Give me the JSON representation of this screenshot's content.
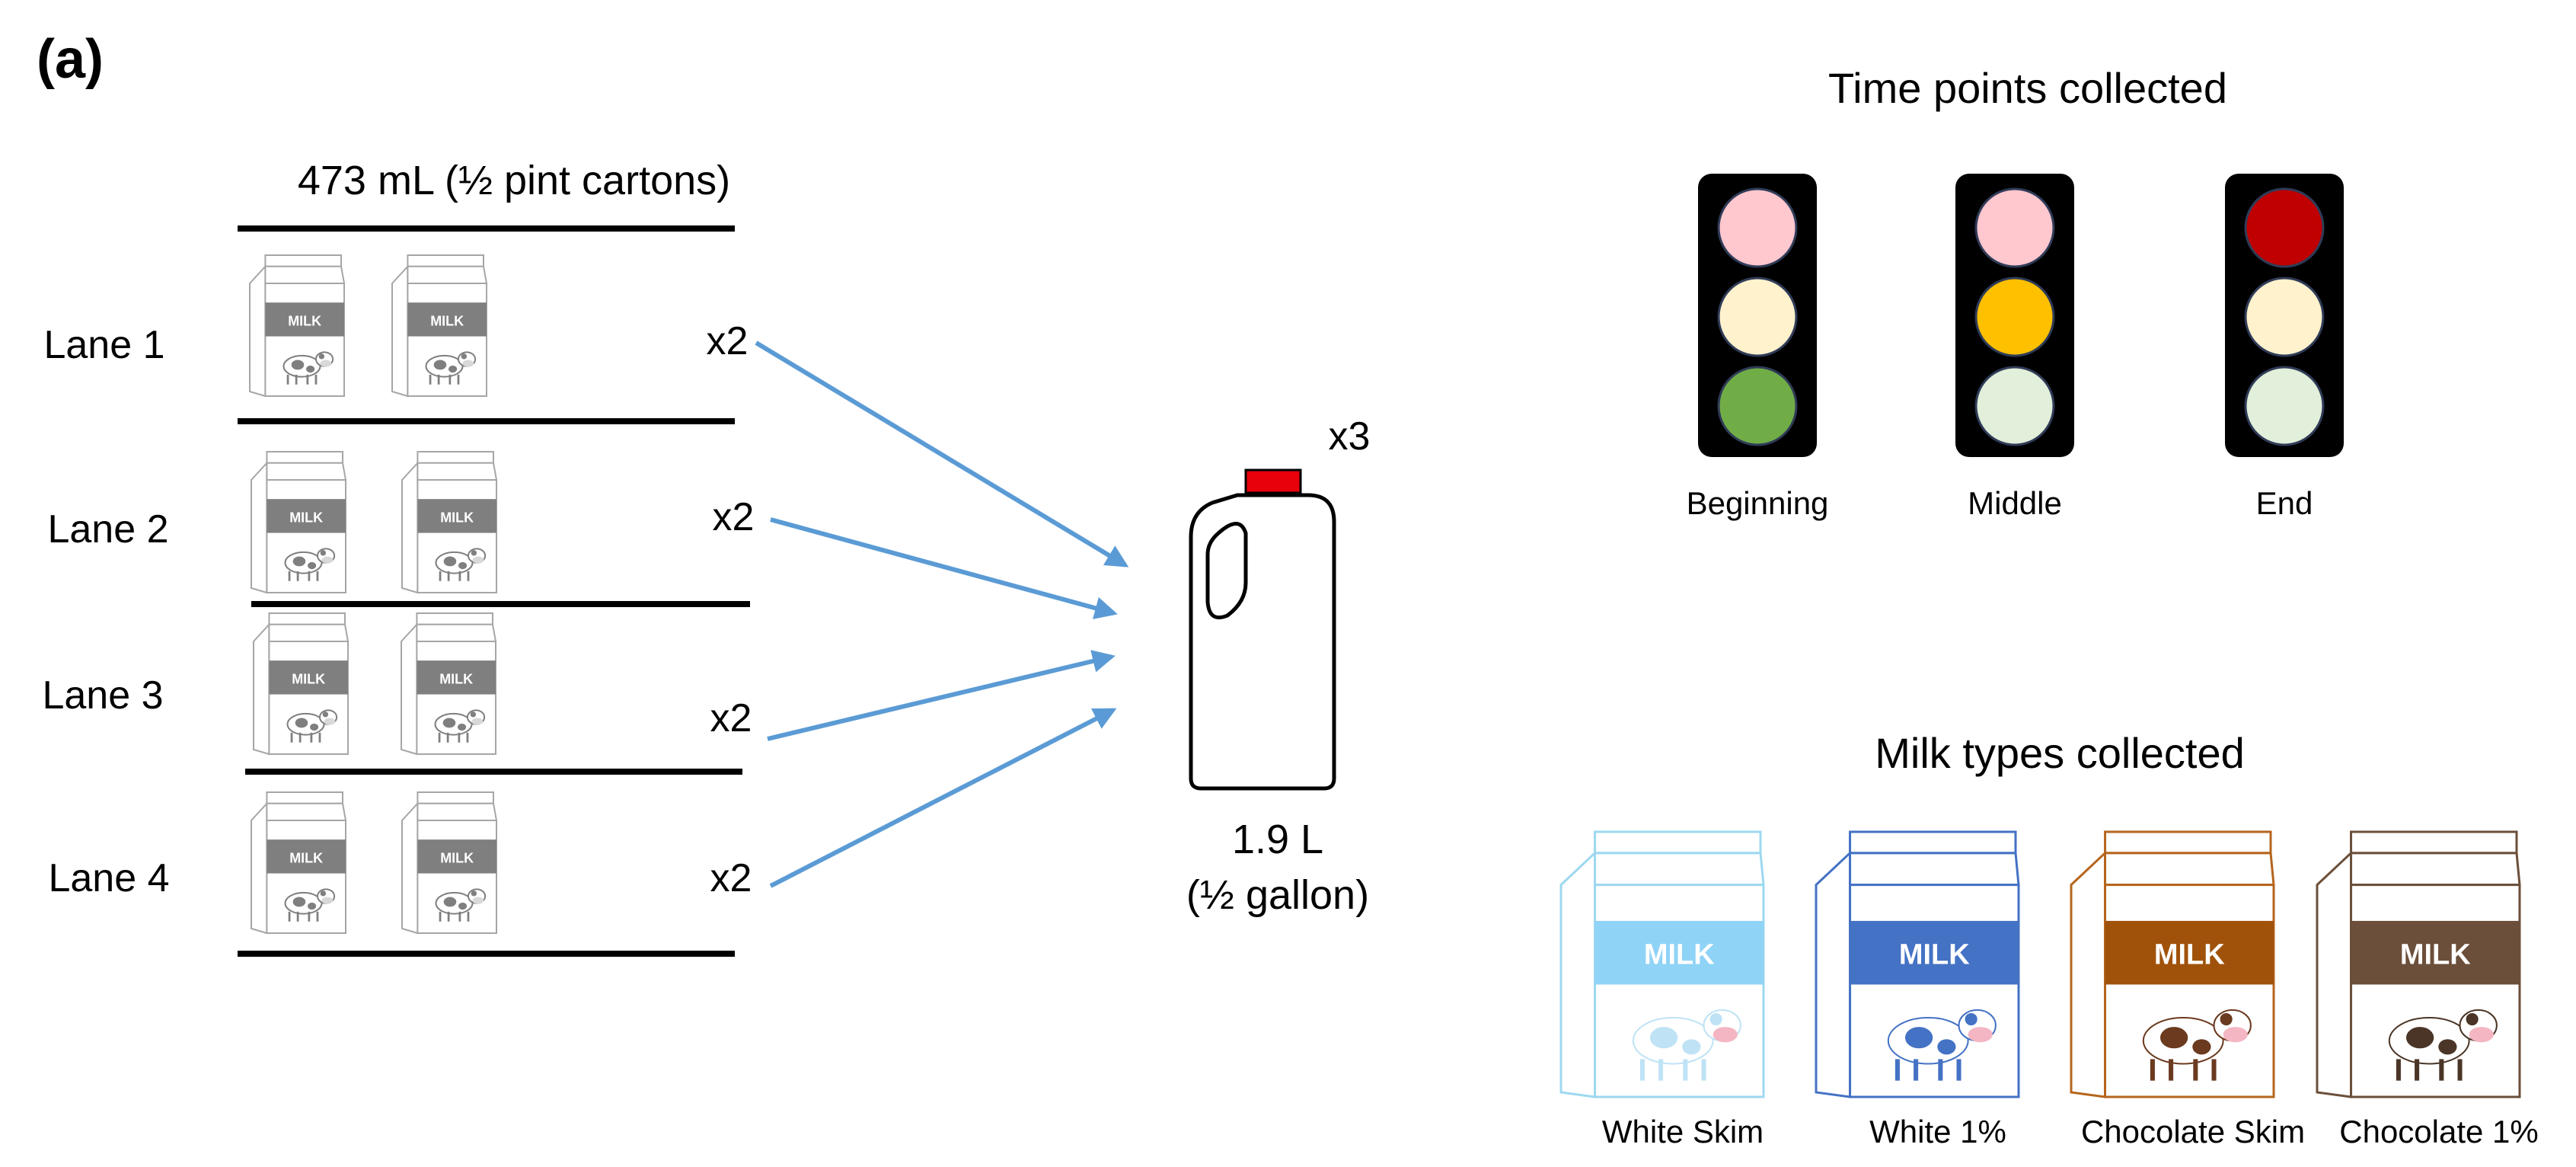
{
  "panel_label": "(a)",
  "carton_header": "473 mL (½ pint cartons)",
  "carton_text": "MILK",
  "lanes": [
    {
      "label": "Lane 1",
      "multiplier": "x2"
    },
    {
      "label": "Lane 2",
      "multiplier": "x2"
    },
    {
      "label": "Lane 3",
      "multiplier": "x2"
    },
    {
      "label": "Lane 4",
      "multiplier": "x2"
    }
  ],
  "jug": {
    "multiplier": "x3",
    "volume": "1.9 L",
    "volume_alt": "(½ gallon)",
    "cap_color": "#e8000b"
  },
  "arrow_color": "#5b9bd5",
  "time_points": {
    "title": "Time points collected",
    "lights": [
      {
        "label": "Beginning",
        "colors": [
          "#ffc7ce",
          "#fff2cc",
          "#70ad47"
        ]
      },
      {
        "label": "Middle",
        "colors": [
          "#ffc7ce",
          "#ffc000",
          "#e2efda"
        ]
      },
      {
        "label": "End",
        "colors": [
          "#c00000",
          "#fff2cc",
          "#e2efda"
        ]
      }
    ]
  },
  "milk_types": {
    "title": "Milk types collected",
    "items": [
      {
        "label": "White Skim",
        "outline": "#9dd8f0",
        "band": "#8fd3f7",
        "cow": "#bfe3f5",
        "text": "MILK"
      },
      {
        "label": "White 1%",
        "outline": "#4472c4",
        "band": "#4472c4",
        "cow": "#4472c4",
        "text": "MILK"
      },
      {
        "label": "Chocolate Skim",
        "outline": "#b5651d",
        "band": "#a0520b",
        "cow": "#6b3a1f",
        "text": "MILK"
      },
      {
        "label": "Chocolate 1%",
        "outline": "#6b4f3a",
        "band": "#6b4f3a",
        "cow": "#4a3526",
        "text": "MILK"
      }
    ]
  }
}
